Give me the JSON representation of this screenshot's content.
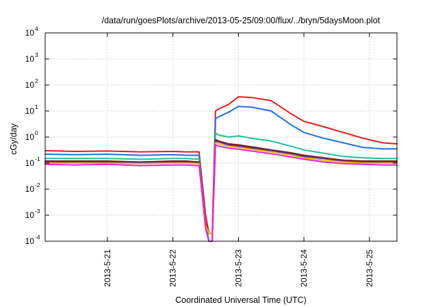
{
  "chart_data": {
    "type": "line",
    "title": "/data/run/goesPlots/archive/2013-05-25/09:00/flux/../bryn/5daysMoon.plot",
    "xlabel": "Coordinated Universal Time (UTC)",
    "ylabel": "cGy/day",
    "y_scale": "log",
    "ylim": [
      0.0001,
      10000
    ],
    "xlim": [
      20.05,
      25.42
    ],
    "x_unit": "day of May 2013",
    "grid": true,
    "legend": "none",
    "yticks": [
      {
        "mant": "10",
        "exp": "-4",
        "v": 0.0001
      },
      {
        "mant": "10",
        "exp": "-3",
        "v": 0.001
      },
      {
        "mant": "10",
        "exp": "-2",
        "v": 0.01
      },
      {
        "mant": "10",
        "exp": "-1",
        "v": 0.1
      },
      {
        "mant": "10",
        "exp": "0",
        "v": 1
      },
      {
        "mant": "10",
        "exp": "1",
        "v": 10
      },
      {
        "mant": "10",
        "exp": "2",
        "v": 100
      },
      {
        "mant": "10",
        "exp": "3",
        "v": 1000
      },
      {
        "mant": "10",
        "exp": "4",
        "v": 10000
      }
    ],
    "xticks": [
      {
        "label": "2013-5-21",
        "v": 21
      },
      {
        "label": "2013-5-22",
        "v": 22
      },
      {
        "label": "2013-5-23",
        "v": 23
      },
      {
        "label": "2013-5-24",
        "v": 24
      },
      {
        "label": "2013-5-25",
        "v": 25
      }
    ],
    "series": [
      {
        "color": "#e41a1c",
        "x": [
          20.05,
          20.5,
          21.0,
          21.5,
          22.0,
          22.2,
          22.4,
          22.5,
          22.55,
          22.6,
          22.65,
          22.7,
          22.85,
          23.0,
          23.2,
          23.5,
          23.8,
          24.0,
          24.3,
          24.6,
          24.9,
          25.2,
          25.42
        ],
        "y": [
          0.3,
          0.28,
          0.29,
          0.27,
          0.28,
          0.27,
          0.27,
          0.001,
          0.0002,
          0.0002,
          10,
          12,
          18,
          35,
          33,
          25,
          8,
          4,
          2.5,
          1.5,
          0.9,
          0.6,
          0.55
        ]
      },
      {
        "color": "#1f6fe0",
        "x": [
          20.05,
          20.5,
          21.0,
          21.5,
          22.0,
          22.2,
          22.4,
          22.5,
          22.55,
          22.6,
          22.65,
          22.7,
          22.85,
          23.0,
          23.2,
          23.5,
          23.8,
          24.0,
          24.3,
          24.6,
          24.9,
          25.2,
          25.42
        ],
        "y": [
          0.22,
          0.21,
          0.22,
          0.2,
          0.21,
          0.2,
          0.2,
          0.0005,
          0.0001,
          0.0001,
          5,
          6,
          9,
          15,
          14,
          10,
          3,
          1.5,
          0.9,
          0.6,
          0.4,
          0.35,
          0.35
        ]
      },
      {
        "color": "#1fbf9a",
        "x": [
          20.05,
          20.5,
          21.0,
          21.5,
          22.0,
          22.2,
          22.4,
          22.5,
          22.55,
          22.6,
          22.65,
          22.7,
          22.85,
          23.0,
          23.2,
          23.5,
          23.8,
          24.0,
          24.3,
          24.6,
          24.9,
          25.2,
          25.42
        ],
        "y": [
          0.15,
          0.15,
          0.15,
          0.14,
          0.15,
          0.15,
          0.14,
          0.0003,
          0.0001,
          0.0001,
          1.4,
          1.2,
          1.0,
          1.1,
          0.9,
          0.7,
          0.45,
          0.32,
          0.24,
          0.18,
          0.16,
          0.15,
          0.15
        ]
      },
      {
        "color": "#7a1f1f",
        "x": [
          20.05,
          20.5,
          21.0,
          21.5,
          22.0,
          22.2,
          22.4,
          22.5,
          22.55,
          22.6,
          22.65,
          22.7,
          22.85,
          23.0,
          23.2,
          23.5,
          23.8,
          24.0,
          24.3,
          24.6,
          24.9,
          25.2,
          25.42
        ],
        "y": [
          0.12,
          0.12,
          0.12,
          0.11,
          0.12,
          0.12,
          0.11,
          0.0005,
          0.0002,
          0.0002,
          0.8,
          0.7,
          0.55,
          0.5,
          0.42,
          0.32,
          0.25,
          0.2,
          0.16,
          0.13,
          0.12,
          0.12,
          0.12
        ]
      },
      {
        "color": "#5b2c8a",
        "x": [
          20.05,
          20.5,
          21.0,
          21.5,
          22.0,
          22.2,
          22.4,
          22.5,
          22.55,
          22.6,
          22.65,
          22.7,
          22.85,
          23.0,
          23.2,
          23.5,
          23.8,
          24.0,
          24.3,
          24.6,
          24.9,
          25.2,
          25.42
        ],
        "y": [
          0.11,
          0.11,
          0.11,
          0.1,
          0.11,
          0.11,
          0.1,
          0.0004,
          0.0002,
          0.0002,
          0.7,
          0.65,
          0.5,
          0.45,
          0.38,
          0.3,
          0.23,
          0.18,
          0.15,
          0.12,
          0.11,
          0.11,
          0.11
        ]
      },
      {
        "color": "#f0b400",
        "x": [
          20.05,
          20.5,
          21.0,
          21.5,
          22.0,
          22.2,
          22.4,
          22.5,
          22.55,
          22.6,
          22.65,
          22.7,
          22.85,
          23.0,
          23.2,
          23.5,
          23.8,
          24.0,
          24.3,
          24.6,
          24.9,
          25.2,
          25.42
        ],
        "y": [
          0.1,
          0.1,
          0.1,
          0.095,
          0.1,
          0.1,
          0.095,
          0.0004,
          0.0002,
          0.0002,
          0.6,
          0.55,
          0.45,
          0.4,
          0.34,
          0.27,
          0.2,
          0.16,
          0.13,
          0.11,
          0.1,
          0.1,
          0.1
        ]
      },
      {
        "color": "#e81ee0",
        "x": [
          20.05,
          20.5,
          21.0,
          21.5,
          22.0,
          22.2,
          22.4,
          22.5,
          22.55,
          22.6,
          22.65,
          22.7,
          22.85,
          23.0,
          23.2,
          23.5,
          23.8,
          24.0,
          24.3,
          24.6,
          24.9,
          25.2,
          25.42
        ],
        "y": [
          0.09,
          0.085,
          0.09,
          0.08,
          0.085,
          0.085,
          0.08,
          0.0003,
          0.0001,
          0.0001,
          0.5,
          0.45,
          0.38,
          0.34,
          0.29,
          0.23,
          0.17,
          0.14,
          0.11,
          0.095,
          0.09,
          0.085,
          0.085
        ]
      }
    ]
  }
}
